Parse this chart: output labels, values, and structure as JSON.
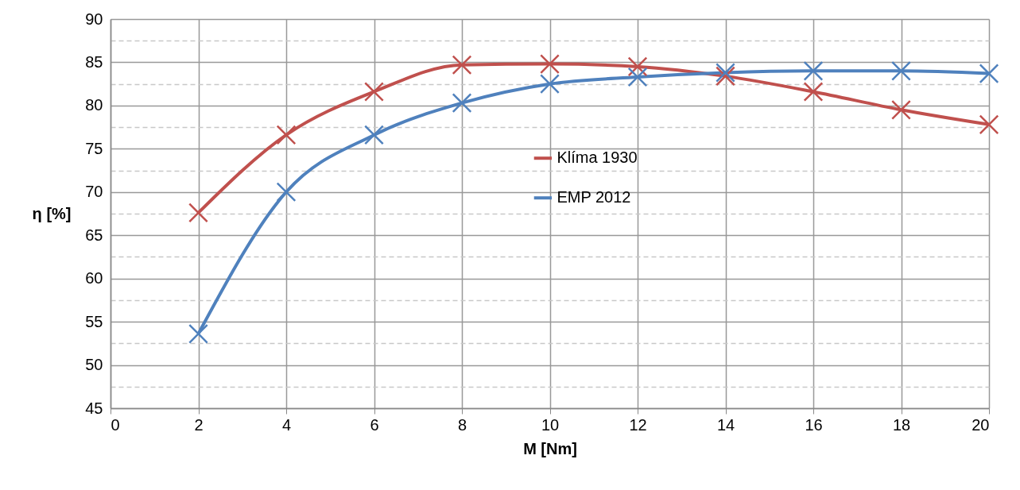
{
  "chart_data": {
    "type": "line",
    "xlabel": "M [Nm]",
    "ylabel": "η [%]",
    "x": [
      2,
      4,
      6,
      8,
      10,
      12,
      14,
      16,
      18,
      20
    ],
    "series": [
      {
        "name": "Klíma 1930",
        "color": "#c0504d",
        "values": [
          67.6,
          76.6,
          81.6,
          84.7,
          84.8,
          84.5,
          83.4,
          81.6,
          79.5,
          77.8
        ]
      },
      {
        "name": "EMP 2012",
        "color": "#4f81bd",
        "values": [
          53.6,
          70.0,
          76.6,
          80.3,
          82.5,
          83.3,
          83.8,
          84.0,
          84.0,
          83.7
        ]
      }
    ],
    "xlim": [
      0,
      20
    ],
    "xticks": [
      0,
      2,
      4,
      6,
      8,
      10,
      12,
      14,
      16,
      18,
      20
    ],
    "ylim": [
      45,
      90
    ],
    "yticks": [
      45,
      {
        "value": 47.5,
        "label": null
      },
      50,
      {
        "value": 52.5,
        "label": null
      },
      55,
      {
        "value": 57.5,
        "label": null
      },
      60,
      {
        "value": 62.5,
        "label": null
      },
      65,
      {
        "value": 67.5,
        "label": null
      },
      70,
      {
        "value": 72.5,
        "label": null
      },
      75,
      {
        "value": 77.5,
        "label": null
      },
      80,
      {
        "value": 82.5,
        "label": null
      },
      85,
      {
        "value": 87.5,
        "label": null
      },
      90
    ],
    "grid": true,
    "legend": "right",
    "marker": "cross",
    "line_style": "solid"
  }
}
